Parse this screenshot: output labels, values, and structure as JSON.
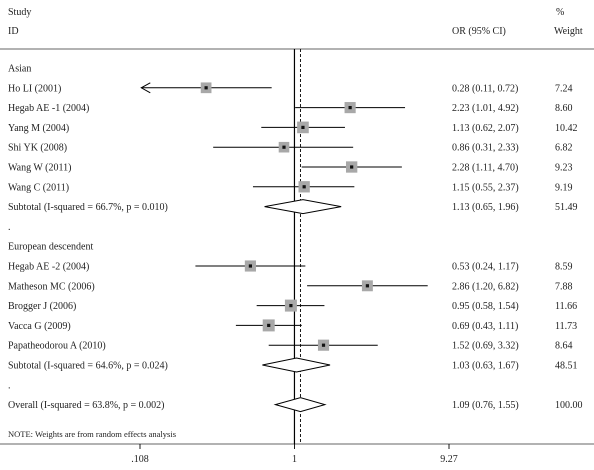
{
  "header": {
    "study_label": "Study",
    "id_label": "ID",
    "or_label": "OR (95% CI)",
    "pct_label": "%",
    "weight_label": "Weight"
  },
  "chart_data": {
    "type": "forest",
    "scale": "log",
    "reference_value": 1,
    "axis_ticks": [
      0.108,
      1,
      9.27
    ],
    "axis_tick_labels": [
      ".108",
      "1",
      "9.27"
    ],
    "overall_line_value": 1.09,
    "rows": [
      {
        "kind": "group",
        "label": "Asian"
      },
      {
        "kind": "study",
        "label": "Ho LI (2001)",
        "or": 0.28,
        "lo": 0.11,
        "hi": 0.72,
        "ci_text": "0.28 (0.11, 0.72)",
        "weight": 7.24,
        "weight_text": "7.24",
        "truncated_low": true
      },
      {
        "kind": "study",
        "label": "Hegab AE -1 (2004)",
        "or": 2.23,
        "lo": 1.01,
        "hi": 4.92,
        "ci_text": "2.23 (1.01, 4.92)",
        "weight": 8.6,
        "weight_text": "8.60"
      },
      {
        "kind": "study",
        "label": "Yang M (2004)",
        "or": 1.13,
        "lo": 0.62,
        "hi": 2.07,
        "ci_text": "1.13 (0.62, 2.07)",
        "weight": 10.42,
        "weight_text": "10.42"
      },
      {
        "kind": "study",
        "label": "Shi YK (2008)",
        "or": 0.86,
        "lo": 0.31,
        "hi": 2.33,
        "ci_text": "0.86 (0.31, 2.33)",
        "weight": 6.82,
        "weight_text": "6.82"
      },
      {
        "kind": "study",
        "label": "Wang W (2011)",
        "or": 2.28,
        "lo": 1.11,
        "hi": 4.7,
        "ci_text": "2.28 (1.11, 4.70)",
        "weight": 9.23,
        "weight_text": "9.23"
      },
      {
        "kind": "study",
        "label": "Wang C (2011)",
        "or": 1.15,
        "lo": 0.55,
        "hi": 2.37,
        "ci_text": "1.15 (0.55, 2.37)",
        "weight": 9.19,
        "weight_text": "9.19"
      },
      {
        "kind": "subtotal",
        "label": "Subtotal  (I-squared = 66.7%, p = 0.010)",
        "or": 1.13,
        "lo": 0.65,
        "hi": 1.96,
        "ci_text": "1.13 (0.65, 1.96)",
        "weight": 51.49,
        "weight_text": "51.49"
      },
      {
        "kind": "spacer",
        "label": "."
      },
      {
        "kind": "group",
        "label": "European descendent"
      },
      {
        "kind": "study",
        "label": "Hegab AE -2 (2004)",
        "or": 0.53,
        "lo": 0.24,
        "hi": 1.17,
        "ci_text": "0.53 (0.24, 1.17)",
        "weight": 8.59,
        "weight_text": "8.59"
      },
      {
        "kind": "study",
        "label": "Matheson MC (2006)",
        "or": 2.86,
        "lo": 1.2,
        "hi": 6.82,
        "ci_text": "2.86 (1.20, 6.82)",
        "weight": 7.88,
        "weight_text": "7.88"
      },
      {
        "kind": "study",
        "label": "Brogger J (2006)",
        "or": 0.95,
        "lo": 0.58,
        "hi": 1.54,
        "ci_text": "0.95 (0.58, 1.54)",
        "weight": 11.66,
        "weight_text": "11.66"
      },
      {
        "kind": "study",
        "label": "Vacca G (2009)",
        "or": 0.69,
        "lo": 0.43,
        "hi": 1.11,
        "ci_text": "0.69 (0.43, 1.11)",
        "weight": 11.73,
        "weight_text": "11.73"
      },
      {
        "kind": "study",
        "label": "Papatheodorou A (2010)",
        "or": 1.52,
        "lo": 0.69,
        "hi": 3.32,
        "ci_text": "1.52 (0.69, 3.32)",
        "weight": 8.64,
        "weight_text": "8.64"
      },
      {
        "kind": "subtotal",
        "label": "Subtotal  (I-squared = 64.6%, p = 0.024)",
        "or": 1.03,
        "lo": 0.63,
        "hi": 1.67,
        "ci_text": "1.03 (0.63, 1.67)",
        "weight": 48.51,
        "weight_text": "48.51"
      },
      {
        "kind": "spacer",
        "label": "."
      },
      {
        "kind": "overall",
        "label": "Overall  (I-squared = 63.8%, p = 0.002)",
        "or": 1.09,
        "lo": 0.76,
        "hi": 1.55,
        "ci_text": "1.09 (0.76, 1.55)",
        "weight": 100.0,
        "weight_text": "100.00"
      }
    ],
    "note": "NOTE: Weights are from random effects analysis"
  }
}
